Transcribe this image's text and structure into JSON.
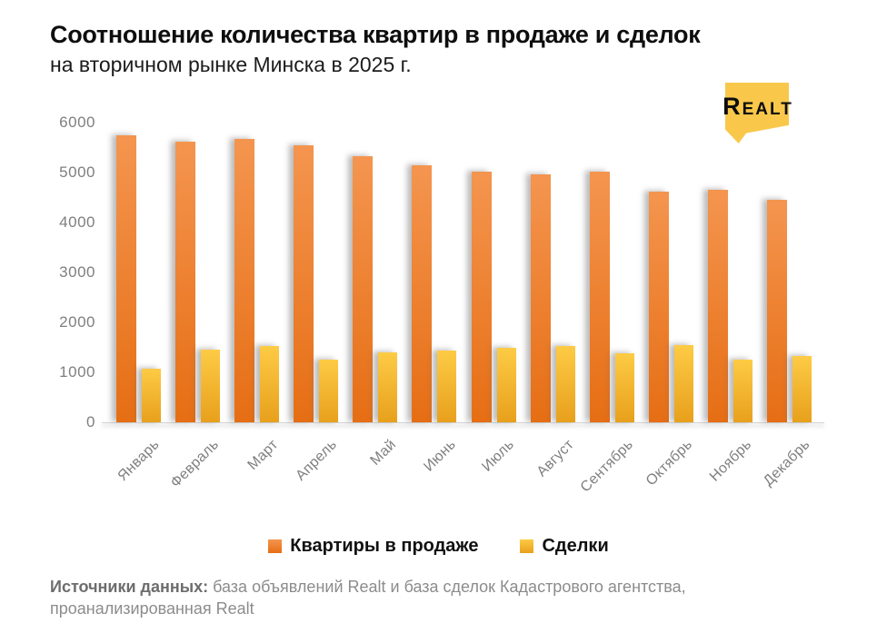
{
  "header": {
    "title": "Соотношение количества квартир в продаже и сделок",
    "subtitle": "на вторичном рынке Минска в 2025 г."
  },
  "logo": {
    "text": "Realt",
    "bubble_color": "#F9C84B",
    "text_color": "#0d0d0d"
  },
  "chart_data": {
    "type": "bar",
    "title": "Соотношение количества квартир в продаже и сделок на вторичном рынке Минска в 2025 г.",
    "categories": [
      "Январь",
      "Февраль",
      "Март",
      "Апрель",
      "Май",
      "Июнь",
      "Июль",
      "Август",
      "Сентябрь",
      "Октябрь",
      "Ноябрь",
      "Декабрь"
    ],
    "series": [
      {
        "name": "Квартиры в продаже",
        "color_top": "#F4954F",
        "color_bottom": "#E66E14",
        "values": [
          5750,
          5620,
          5680,
          5540,
          5330,
          5140,
          5010,
          4960,
          5010,
          4610,
          4650,
          4450
        ]
      },
      {
        "name": "Сделки",
        "color_top": "#FDCB45",
        "color_bottom": "#E8A01C",
        "values": [
          1070,
          1460,
          1520,
          1260,
          1400,
          1430,
          1500,
          1530,
          1390,
          1540,
          1250,
          1330
        ]
      }
    ],
    "xlabel": "",
    "ylabel": "",
    "ylim": [
      0,
      6000
    ],
    "y_ticks": [
      6000,
      5000,
      4000,
      3000,
      2000,
      1000,
      0
    ],
    "grid": false,
    "legend_position": "bottom"
  },
  "legend": {
    "items": [
      {
        "label": "Квартиры в продаже"
      },
      {
        "label": "Сделки"
      }
    ]
  },
  "footer": {
    "label": "Источники данных:",
    "text": " база объявлений Realt и база сделок Кадастрового агентства, проанализированная Realt"
  }
}
